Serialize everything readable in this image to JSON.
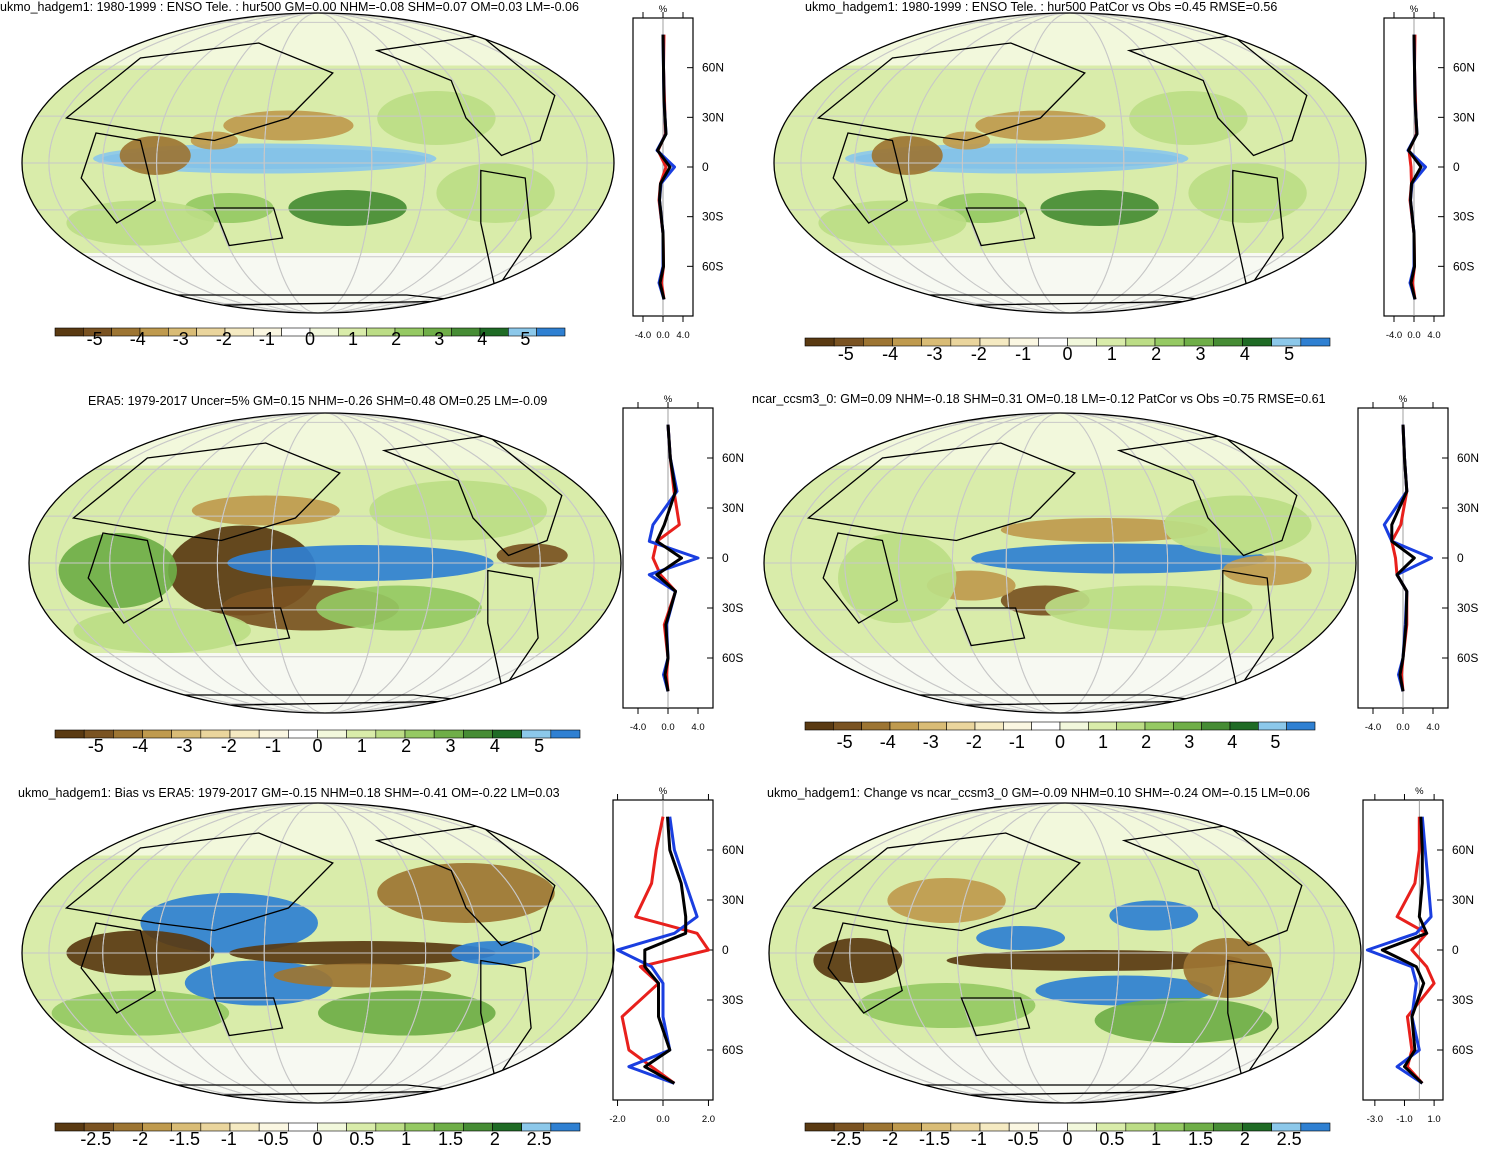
{
  "palette": {
    "colors": [
      "#5a3a12",
      "#7a5322",
      "#9d7533",
      "#bf9a4e",
      "#d9bc76",
      "#ead59d",
      "#f5eac2",
      "#fbf7e2",
      "#ffffff",
      "#f2f8dc",
      "#d9ecaa",
      "#bcdd86",
      "#95c963",
      "#6fae48",
      "#468c34",
      "#1f6b25",
      "#8cc8ea",
      "#2f80d2"
    ],
    "land": "#000000",
    "curve_colors": {
      "model": "#e8201c",
      "obs": "#1a3ee0",
      "mean": "#000000"
    }
  },
  "panels": [
    {
      "title": "ukmo_hadgem1: 1980-1999 : ENSO Tele. : hur500 GM=0.00 NHM=-0.08 SHM=0.07 OM=0.03 LM=-0.06",
      "colorbar": [
        "-5",
        "-4",
        "-3",
        "-2",
        "-1",
        "0",
        "1",
        "2",
        "3",
        "4",
        "5"
      ],
      "profile": {
        "unit": "%",
        "lat_labels": [
          "60N",
          "30N",
          "0",
          "30S",
          "60S"
        ],
        "x_labels": [
          "-4.0",
          "0.0",
          "4.0"
        ]
      }
    },
    {
      "title": "ukmo_hadgem1: 1980-1999 : ENSO Tele. : hur500 PatCor vs Obs =0.45 RMSE=0.56",
      "colorbar": [
        "-5",
        "-4",
        "-3",
        "-2",
        "-1",
        "0",
        "1",
        "2",
        "3",
        "4",
        "5"
      ],
      "profile": {
        "unit": "%",
        "lat_labels": [
          "60N",
          "30N",
          "0",
          "30S",
          "60S"
        ],
        "x_labels": [
          "-4.0",
          "0.0",
          "4.0"
        ]
      }
    },
    {
      "title": "ERA5: 1979-2017 Uncer=5% GM=0.15 NHM=-0.26 SHM=0.48 OM=0.25 LM=-0.09",
      "colorbar": [
        "-5",
        "-4",
        "-3",
        "-2",
        "-1",
        "0",
        "1",
        "2",
        "3",
        "4",
        "5"
      ],
      "profile": {
        "unit": "%",
        "lat_labels": [
          "60N",
          "30N",
          "0",
          "30S",
          "60S"
        ],
        "x_labels": [
          "-4.0",
          "0.0",
          "4.0"
        ]
      }
    },
    {
      "title": "ncar_ccsm3_0: GM=0.09 NHM=-0.18 SHM=0.31 OM=0.18 LM=-0.12 PatCor vs Obs =0.75 RMSE=0.61",
      "colorbar": [
        "-5",
        "-4",
        "-3",
        "-2",
        "-1",
        "0",
        "1",
        "2",
        "3",
        "4",
        "5"
      ],
      "profile": {
        "unit": "%",
        "lat_labels": [
          "60N",
          "30N",
          "0",
          "30S",
          "60S"
        ],
        "x_labels": [
          "-4.0",
          "0.0",
          "4.0"
        ]
      }
    },
    {
      "title": "ukmo_hadgem1: Bias vs ERA5: 1979-2017 GM=-0.15 NHM=0.18 SHM=-0.41 OM=-0.22 LM=0.03",
      "colorbar": [
        "-2.5",
        "-2",
        "-1.5",
        "-1",
        "-0.5",
        "0",
        "0.5",
        "1",
        "1.5",
        "2",
        "2.5"
      ],
      "profile": {
        "unit": "%",
        "lat_labels": [
          "60N",
          "30N",
          "0",
          "30S",
          "60S"
        ],
        "x_labels": [
          "-2.0",
          "0.0",
          "2.0"
        ]
      }
    },
    {
      "title": "ukmo_hadgem1: Change vs ncar_ccsm3_0 GM=-0.09 NHM=0.10 SHM=-0.24 OM=-0.15 LM=0.06",
      "colorbar": [
        "-2.5",
        "-2",
        "-1.5",
        "-1",
        "-0.5",
        "0",
        "0.5",
        "1",
        "1.5",
        "2",
        "2.5"
      ],
      "profile": {
        "unit": "%",
        "lat_labels": [
          "60N",
          "30N",
          "0",
          "30S",
          "60S"
        ],
        "x_labels": [
          "-3.0",
          "-1.0",
          "1.0"
        ]
      }
    }
  ],
  "chart_data": [
    {
      "type": "heatmap",
      "title": "ukmo_hadgem1: 1980-1999 : ENSO Tele. : hur500 GM=0.00 NHM=-0.08 SHM=0.07 OM=0.03 LM=-0.06",
      "colorbar_ticks": [
        -5,
        -4,
        -3,
        -2,
        -1,
        0,
        1,
        2,
        3,
        4,
        5
      ],
      "zonal_profile": {
        "lat": [
          80,
          60,
          40,
          20,
          10,
          0,
          -10,
          -20,
          -40,
          -60,
          -70,
          -80
        ],
        "series": [
          {
            "values": [
              0.2,
              0.1,
              0.3,
              0.5,
              -1.0,
              0.6,
              -0.5,
              -0.8,
              0.0,
              0.1,
              -0.3,
              0.2
            ]
          },
          {
            "values": [
              0.0,
              0.1,
              0.2,
              0.6,
              -1.2,
              2.3,
              -0.4,
              -0.7,
              0.0,
              0.0,
              -0.8,
              0.2
            ]
          },
          {
            "values": [
              0.0,
              0.1,
              0.2,
              0.6,
              -1.1,
              1.4,
              -0.5,
              -0.7,
              0.0,
              0.1,
              -0.6,
              0.2
            ]
          }
        ],
        "xlim": [
          -6,
          6
        ]
      }
    },
    {
      "type": "heatmap",
      "title": "ukmo_hadgem1: 1980-1999 : ENSO Tele. : hur500 PatCor vs Obs =0.45 RMSE=0.56",
      "colorbar_ticks": [
        -5,
        -4,
        -3,
        -2,
        -1,
        0,
        1,
        2,
        3,
        4,
        5
      ],
      "zonal_profile": {
        "lat": [
          80,
          60,
          40,
          20,
          10,
          0,
          -10,
          -20,
          -40,
          -60,
          -70,
          -80
        ],
        "series": [
          {
            "values": [
              0.2,
              0.1,
              0.3,
              0.5,
              -1.0,
              -0.6,
              -0.5,
              -0.8,
              0.0,
              0.1,
              -0.3,
              0.2
            ]
          },
          {
            "values": [
              0.0,
              0.1,
              0.2,
              0.6,
              -1.2,
              2.3,
              -0.4,
              -0.7,
              0.0,
              0.0,
              -0.8,
              0.2
            ]
          },
          {
            "values": [
              0.0,
              0.1,
              0.2,
              0.6,
              -1.1,
              1.4,
              -0.5,
              -0.7,
              0.0,
              0.1,
              -0.6,
              0.2
            ]
          }
        ],
        "xlim": [
          -6,
          6
        ]
      }
    },
    {
      "type": "heatmap",
      "title": "ERA5: 1979-2017 Uncer=5% GM=0.15 NHM=-0.26 SHM=0.48 OM=0.25 LM=-0.09",
      "colorbar_ticks": [
        -5,
        -4,
        -3,
        -2,
        -1,
        0,
        1,
        2,
        3,
        4,
        5
      ],
      "zonal_profile": {
        "lat": [
          80,
          60,
          40,
          20,
          10,
          0,
          -10,
          -20,
          -40,
          -60,
          -70,
          -80
        ],
        "series": [
          {
            "values": [
              0.0,
              0.3,
              0.8,
              1.5,
              -1.5,
              -2.0,
              -1.0,
              1.0,
              -0.5,
              0.0,
              -0.2,
              0.0
            ]
          },
          {
            "values": [
              0.0,
              0.3,
              1.2,
              -2.0,
              -2.5,
              4.0,
              -2.5,
              1.0,
              -0.2,
              0.0,
              -0.6,
              0.0
            ]
          },
          {
            "values": [
              0.0,
              0.3,
              1.0,
              -0.5,
              -1.5,
              1.8,
              -1.5,
              1.0,
              -0.3,
              0.0,
              -0.4,
              0.0
            ]
          }
        ],
        "xlim": [
          -6,
          6
        ]
      }
    },
    {
      "type": "heatmap",
      "title": "ncar_ccsm3_0: GM=0.09 NHM=-0.18 SHM=0.31 OM=0.18 LM=-0.12 PatCor vs Obs =0.75 RMSE=0.61",
      "colorbar_ticks": [
        -5,
        -4,
        -3,
        -2,
        -1,
        0,
        1,
        2,
        3,
        4,
        5
      ],
      "zonal_profile": {
        "lat": [
          80,
          60,
          40,
          20,
          10,
          0,
          -10,
          -20,
          -40,
          -60,
          -70,
          -80
        ],
        "series": [
          {
            "values": [
              0.0,
              0.2,
              0.5,
              -0.3,
              -1.5,
              -1.0,
              -0.8,
              0.5,
              0.5,
              0.0,
              -0.2,
              0.0
            ]
          },
          {
            "values": [
              0.0,
              0.2,
              0.5,
              -2.5,
              -1.5,
              3.8,
              -0.8,
              0.5,
              0.3,
              0.0,
              -0.6,
              0.0
            ]
          },
          {
            "values": [
              0.0,
              0.2,
              0.5,
              -1.5,
              -1.5,
              1.5,
              -0.8,
              0.5,
              0.4,
              0.0,
              -0.4,
              0.0
            ]
          }
        ],
        "xlim": [
          -6,
          6
        ]
      }
    },
    {
      "type": "heatmap",
      "title": "ukmo_hadgem1: Bias vs ERA5: 1979-2017 GM=-0.15 NHM=0.18 SHM=-0.41 OM=-0.22 LM=0.03",
      "colorbar_ticks": [
        -2.5,
        -2,
        -1.5,
        -1,
        -0.5,
        0,
        0.5,
        1,
        1.5,
        2,
        2.5
      ],
      "zonal_profile": {
        "lat": [
          80,
          60,
          40,
          20,
          10,
          0,
          -10,
          -20,
          -40,
          -60,
          -70,
          -80
        ],
        "series": [
          {
            "values": [
              0.0,
              -0.3,
              -0.5,
              -1.2,
              1.5,
              2.0,
              -1.0,
              -0.2,
              -1.8,
              -1.5,
              -0.5,
              0.5
            ]
          },
          {
            "values": [
              0.3,
              0.5,
              1.0,
              1.5,
              0.5,
              -2.0,
              -0.5,
              0.0,
              0.0,
              0.3,
              -1.5,
              0.5
            ]
          },
          {
            "values": [
              0.2,
              0.3,
              0.8,
              1.0,
              1.0,
              -0.8,
              -0.8,
              -0.2,
              -0.2,
              0.3,
              -0.8,
              0.5
            ]
          }
        ],
        "xlim": [
          -2.2,
          2.2
        ]
      }
    },
    {
      "type": "heatmap",
      "title": "ukmo_hadgem1: Change vs ncar_ccsm3_0 GM=-0.09 NHM=0.10 SHM=-0.24 OM=-0.15 LM=0.06",
      "colorbar_ticks": [
        -2.5,
        -2,
        -1.5,
        -1,
        -0.5,
        0,
        0.5,
        1,
        1.5,
        2,
        2.5
      ],
      "zonal_profile": {
        "lat": [
          80,
          60,
          40,
          20,
          10,
          0,
          -10,
          -20,
          -40,
          -60,
          -70,
          -80
        ],
        "series": [
          {
            "values": [
              0.0,
              0.0,
              -0.3,
              -1.5,
              0.5,
              -0.5,
              0.5,
              1.0,
              -0.8,
              -0.5,
              -0.8,
              0.2
            ]
          },
          {
            "values": [
              0.2,
              0.4,
              0.6,
              0.8,
              -0.2,
              -3.5,
              -0.5,
              -0.2,
              -0.5,
              0.0,
              -1.5,
              0.2
            ]
          },
          {
            "values": [
              0.1,
              0.2,
              0.2,
              0.0,
              0.5,
              -2.5,
              -0.2,
              0.3,
              -0.5,
              -0.3,
              -1.0,
              0.2
            ]
          }
        ],
        "xlim": [
          -3.8,
          1.6
        ]
      }
    }
  ]
}
